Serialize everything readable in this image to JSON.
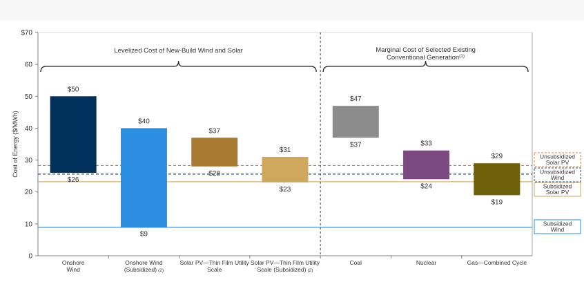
{
  "chart_data": {
    "type": "bar",
    "ylabel": "Cost of Energy ($/MWh)",
    "ylim": [
      0,
      70
    ],
    "yticks": [
      "0",
      "10",
      "20",
      "30",
      "40",
      "50",
      "60",
      "$70"
    ],
    "grid": false,
    "categories": [
      {
        "lines": [
          "Onshore",
          "Wind"
        ]
      },
      {
        "lines": [
          "Onshore Wind",
          "(Subsidized)"
        ],
        "sup": "(2)"
      },
      {
        "lines": [
          "Solar PV—Thin Film Utility",
          "Scale"
        ]
      },
      {
        "lines": [
          "Solar PV—Thin Film Utility",
          "Scale (Subsidized)"
        ],
        "sup": "(2)"
      },
      {
        "lines": [
          "Coal"
        ]
      },
      {
        "lines": [
          "Nuclear"
        ]
      },
      {
        "lines": [
          "Gas—Combined Cycle"
        ]
      }
    ],
    "ranges": [
      {
        "low": 26,
        "high": 50,
        "low_label": "$26",
        "high_label": "$50",
        "color": "#00305c"
      },
      {
        "low": 9,
        "high": 40,
        "low_label": "$9",
        "high_label": "$40",
        "color": "#2b8ede"
      },
      {
        "low": 28,
        "high": 37,
        "low_label": "$28",
        "high_label": "$37",
        "color": "#a97a32"
      },
      {
        "low": 23,
        "high": 31,
        "low_label": "$23",
        "high_label": "$31",
        "color": "#cfa75d"
      },
      {
        "low": 37,
        "high": 47,
        "low_label": "$37",
        "high_label": "$47",
        "color": "#8c8c8c"
      },
      {
        "low": 24,
        "high": 33,
        "low_label": "$24",
        "high_label": "$33",
        "color": "#7b4a80"
      },
      {
        "low": 19,
        "high": 29,
        "low_label": "$19",
        "high_label": "$29",
        "color": "#6d6008"
      }
    ],
    "groups": [
      {
        "title_lines": [
          "Levelized Cost of New-Build Wind and Solar"
        ],
        "sup": "",
        "first": 0,
        "last": 3
      },
      {
        "title_lines": [
          "Marginal Cost of Selected Existing",
          "Conventional Generation"
        ],
        "sup": "(1)",
        "first": 4,
        "last": 6
      }
    ],
    "reference_lines": [
      {
        "label_lines": [
          "Unsubsidized",
          "Solar PV"
        ],
        "value": 28.3,
        "color": "#e07b3a",
        "dashed": true
      },
      {
        "label_lines": [
          "Unsubsidized",
          "Wind"
        ],
        "value": 25.6,
        "color": "#1f4e79",
        "dashed": true
      },
      {
        "label_lines": [
          "Subsidized",
          "Solar PV"
        ],
        "value": 23.2,
        "color": "#d4a257",
        "dashed": false
      },
      {
        "label_lines": [
          "Subsidized",
          "Wind"
        ],
        "value": 8.9,
        "color": "#2b8ede",
        "dashed": false
      }
    ]
  }
}
